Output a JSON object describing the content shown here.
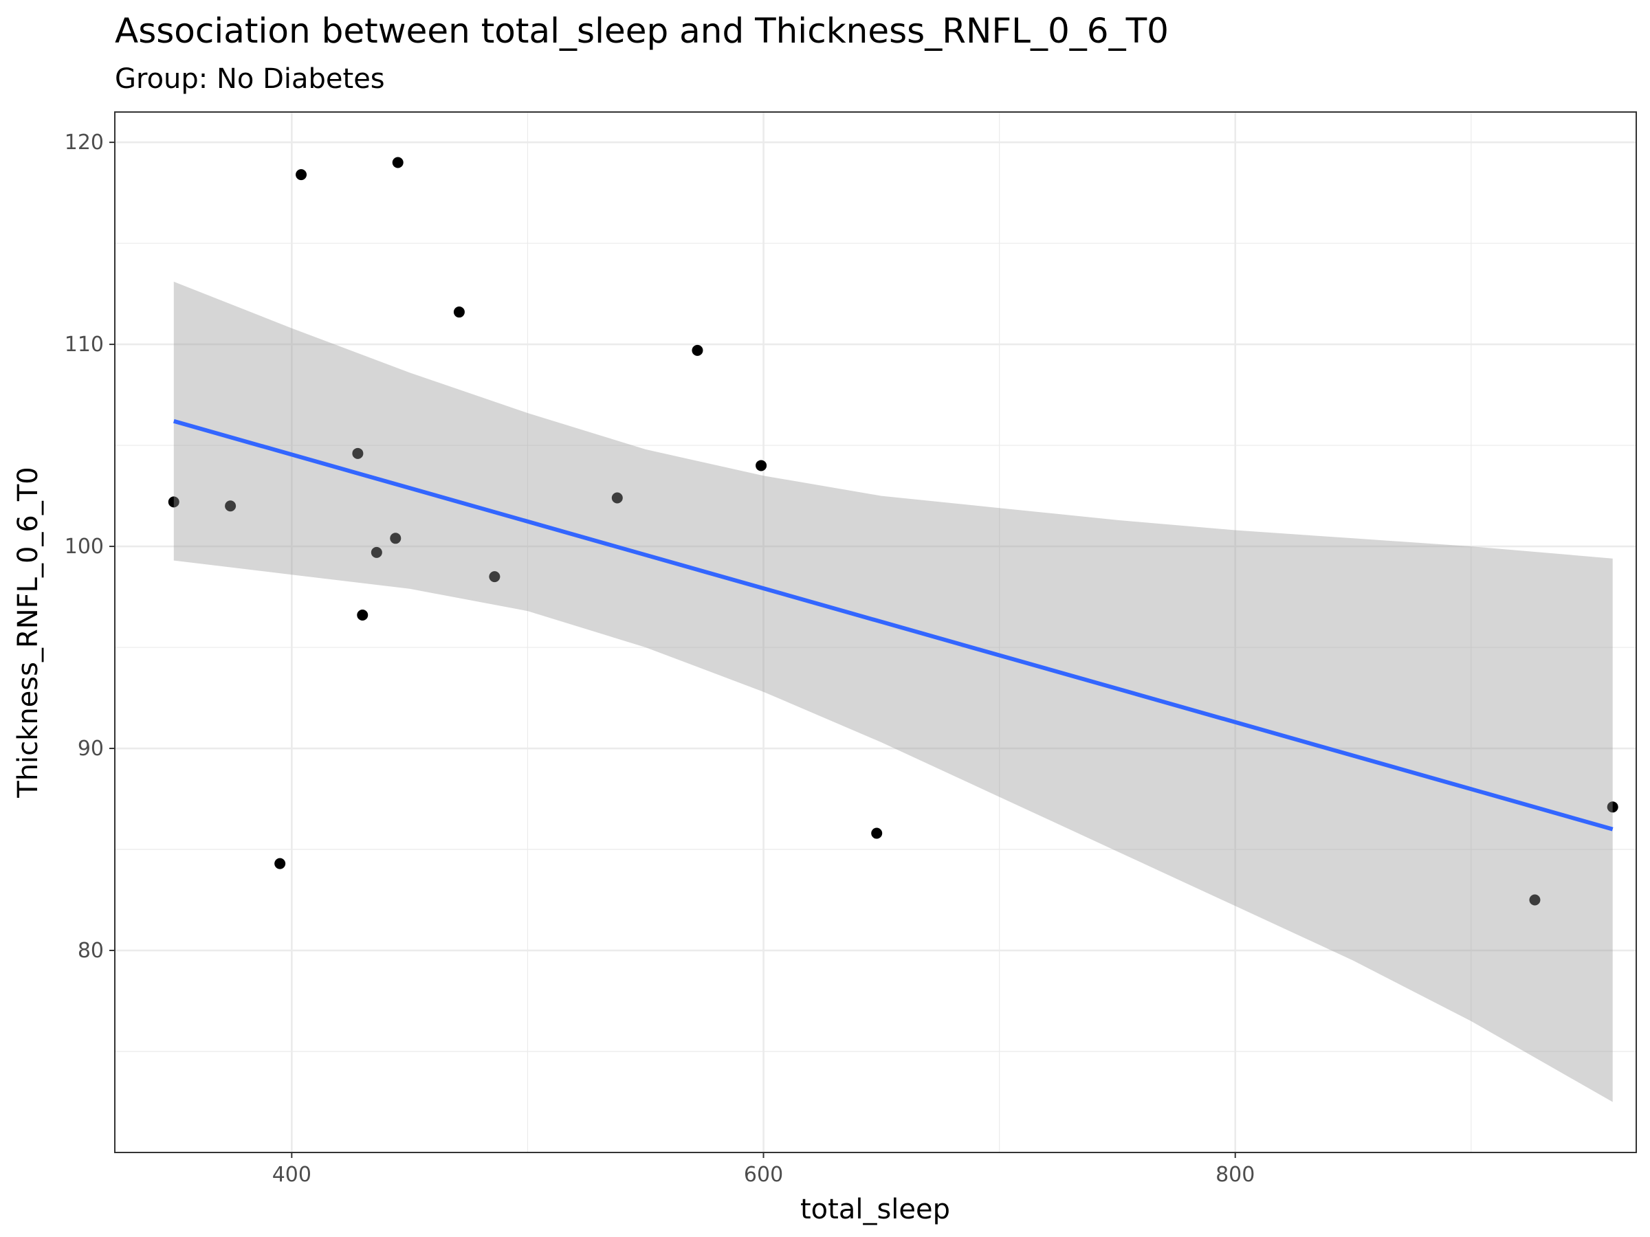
{
  "chart_data": {
    "type": "scatter",
    "title": "Association between total_sleep and Thickness_RNFL_0_6_T0",
    "subtitle": "Group: No Diabetes",
    "xlabel": "total_sleep",
    "ylabel": "Thickness_RNFL_0_6_T0",
    "xlim": [
      325,
      970
    ],
    "ylim": [
      70,
      121.5
    ],
    "xticks": [
      400,
      600,
      800
    ],
    "yticks": [
      80,
      90,
      100,
      110,
      120
    ],
    "grid": true,
    "point_color": "#000000",
    "points": [
      {
        "x": 350,
        "y": 102.2
      },
      {
        "x": 374,
        "y": 102.0
      },
      {
        "x": 395,
        "y": 84.3
      },
      {
        "x": 404,
        "y": 118.4
      },
      {
        "x": 428,
        "y": 104.6
      },
      {
        "x": 430,
        "y": 96.6
      },
      {
        "x": 436,
        "y": 99.7
      },
      {
        "x": 444,
        "y": 100.4
      },
      {
        "x": 445,
        "y": 119.0
      },
      {
        "x": 471,
        "y": 111.6
      },
      {
        "x": 486,
        "y": 98.5
      },
      {
        "x": 538,
        "y": 102.4
      },
      {
        "x": 572,
        "y": 109.7
      },
      {
        "x": 599,
        "y": 104.0
      },
      {
        "x": 648,
        "y": 85.8
      },
      {
        "x": 927,
        "y": 82.5
      },
      {
        "x": 960,
        "y": 87.1
      }
    ],
    "fit": {
      "method": "linear",
      "color": "#3366ff",
      "band_color": "#999999",
      "line": [
        {
          "x": 350,
          "y": 106.2
        },
        {
          "x": 960,
          "y": 86.0
        }
      ],
      "band": [
        {
          "x": 350,
          "lower": 99.3,
          "upper": 113.1
        },
        {
          "x": 400,
          "lower": 98.6,
          "upper": 110.8
        },
        {
          "x": 450,
          "lower": 97.9,
          "upper": 108.6
        },
        {
          "x": 500,
          "lower": 96.8,
          "upper": 106.6
        },
        {
          "x": 550,
          "lower": 95.0,
          "upper": 104.8
        },
        {
          "x": 600,
          "lower": 92.8,
          "upper": 103.5
        },
        {
          "x": 650,
          "lower": 90.3,
          "upper": 102.5
        },
        {
          "x": 700,
          "lower": 87.6,
          "upper": 101.9
        },
        {
          "x": 750,
          "lower": 84.9,
          "upper": 101.3
        },
        {
          "x": 800,
          "lower": 82.2,
          "upper": 100.8
        },
        {
          "x": 850,
          "lower": 79.5,
          "upper": 100.4
        },
        {
          "x": 900,
          "lower": 76.5,
          "upper": 100.0
        },
        {
          "x": 960,
          "lower": 72.5,
          "upper": 99.4
        }
      ]
    }
  }
}
